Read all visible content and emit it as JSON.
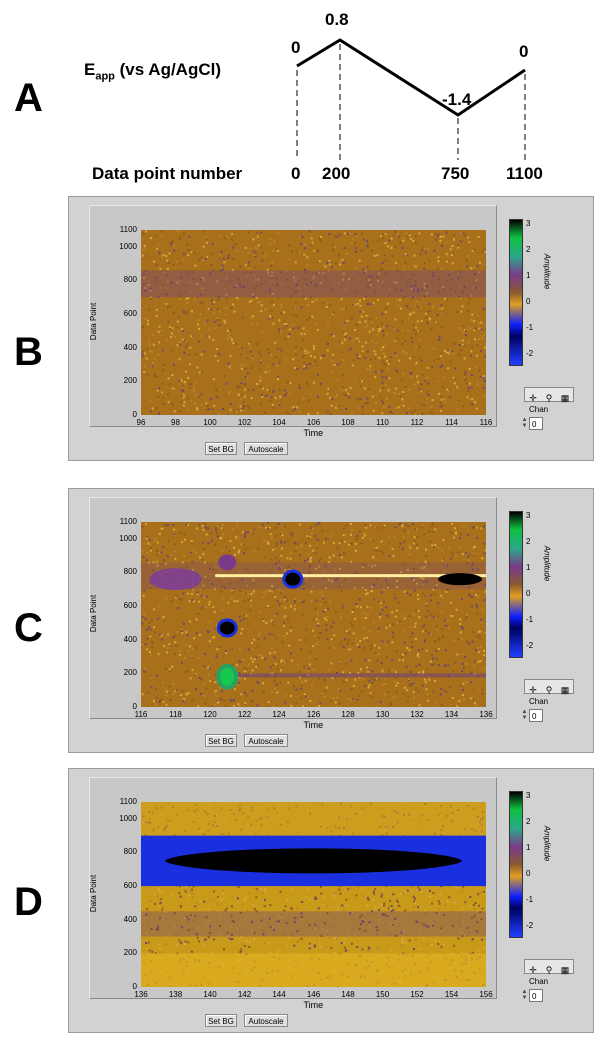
{
  "panel_labels": [
    "A",
    "B",
    "C",
    "D"
  ],
  "waveform": {
    "eapp_label_main": "E",
    "eapp_label_sub": "app",
    "eapp_label_rest": " (vs Ag/AgCl)",
    "datapoint_label": "Data point number",
    "potential_labels": [
      "0",
      "0.8",
      "-1.4",
      "0"
    ],
    "datapoint_ticks": [
      "0",
      "200",
      "750",
      "1100"
    ]
  },
  "chart_data": [
    {
      "type": "waveform",
      "title": "",
      "x": [
        0,
        200,
        750,
        1100
      ],
      "y": [
        0,
        0.8,
        -1.4,
        0
      ],
      "xlabel": "Data point number",
      "ylabel": "Eapp (vs Ag/AgCl)"
    },
    {
      "type": "heatmap",
      "panel": "B",
      "xlabel": "Time",
      "ylabel": "Data Point",
      "xlim": [
        96,
        116
      ],
      "ylim": [
        0,
        1100
      ],
      "xticks": [
        "96",
        "98",
        "100",
        "102",
        "104",
        "106",
        "108",
        "110",
        "112",
        "114",
        "116"
      ],
      "yticks": [
        "0",
        "200",
        "400",
        "600",
        "800",
        "1000",
        "1100"
      ],
      "colorbar_label": "Amplitude",
      "colorbar_ticks": [
        "3",
        "2",
        "1",
        "0",
        "-1",
        "-2"
      ],
      "colorbar_range": [
        -2,
        3
      ],
      "features": []
    },
    {
      "type": "heatmap",
      "panel": "C",
      "xlabel": "Time",
      "ylabel": "Data Point",
      "xlim": [
        116,
        136
      ],
      "ylim": [
        0,
        1100
      ],
      "xticks": [
        "116",
        "118",
        "120",
        "122",
        "124",
        "126",
        "128",
        "130",
        "132",
        "134",
        "136"
      ],
      "yticks": [
        "0",
        "200",
        "400",
        "600",
        "800",
        "1000",
        "1100"
      ],
      "colorbar_label": "Amplitude",
      "colorbar_ticks": [
        "3",
        "2",
        "1",
        "0",
        "-1",
        "-2"
      ],
      "colorbar_range": [
        -2,
        3
      ],
      "features": [
        {
          "time": 121,
          "data_point": 180,
          "amplitude": 2.5
        },
        {
          "time": 121,
          "data_point": 470,
          "amplitude": -2
        },
        {
          "time": 121,
          "data_point": 860,
          "amplitude": 1
        },
        {
          "time": 124.8,
          "data_point": 760,
          "amplitude": -2
        },
        {
          "time": 134.5,
          "data_point": 760,
          "amplitude": -1.5
        }
      ]
    },
    {
      "type": "heatmap",
      "panel": "D",
      "xlabel": "Time",
      "ylabel": "Data Point",
      "xlim": [
        136,
        156
      ],
      "ylim": [
        0,
        1100
      ],
      "xticks": [
        "136",
        "138",
        "140",
        "142",
        "144",
        "146",
        "148",
        "150",
        "152",
        "154",
        "156"
      ],
      "yticks": [
        "0",
        "200",
        "400",
        "600",
        "800",
        "1000",
        "1100"
      ],
      "colorbar_label": "Amplitude",
      "colorbar_ticks": [
        "3",
        "2",
        "1",
        "0",
        "-1",
        "-2"
      ],
      "colorbar_range": [
        -2,
        3
      ],
      "features": [
        {
          "time": 146,
          "data_point": 750,
          "amplitude": -2
        }
      ]
    }
  ],
  "controls": {
    "set_bg": "Set BG",
    "autoscale": "Autoscale",
    "chan_label": "Chan",
    "chan_value": "0"
  },
  "colors": {
    "panel_bg": "#d2d2d2",
    "background_field": "#b8860b",
    "negative": "#1030ff",
    "strong_negative": "#000000",
    "positive": "#20c060",
    "purple": "#7a3a8a"
  }
}
